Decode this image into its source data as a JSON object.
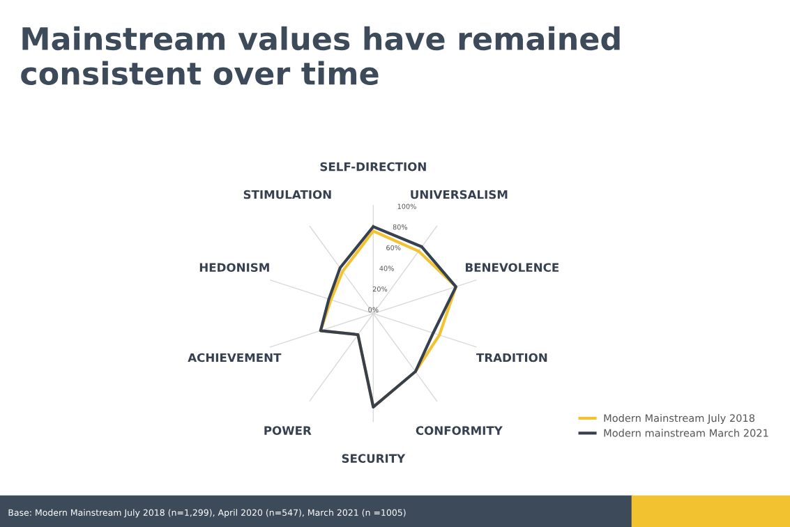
{
  "chart_data": {
    "type": "radar",
    "title": "Mainstream values have remained\nconsistent over time",
    "categories": [
      "SELF-DIRECTION",
      "UNIVERSALISM",
      "BENEVOLENCE",
      "TRADITION",
      "CONFORMITY",
      "SECURITY",
      "POWER",
      "ACHIEVEMENT",
      "HEDONISM",
      "STIMULATION"
    ],
    "series": [
      {
        "name": "Modern Mainstream July 2018",
        "color": "#f2c230",
        "values": [
          76,
          71,
          80,
          64,
          66,
          86,
          24,
          51,
          41,
          48
        ]
      },
      {
        "name": "Modern mainstream March 2021",
        "color": "#36404f",
        "values": [
          80,
          76,
          80,
          58,
          66,
          86,
          24,
          51,
          43,
          52
        ]
      }
    ],
    "ylim": [
      0,
      100
    ],
    "yticks": [
      {
        "value": 0,
        "label": "0%"
      },
      {
        "value": 20,
        "label": "20%"
      },
      {
        "value": 40,
        "label": "40%"
      },
      {
        "value": 60,
        "label": "60%"
      },
      {
        "value": 80,
        "label": "80%"
      },
      {
        "value": 100,
        "label": "100%"
      }
    ],
    "grid": "x",
    "legend": "bottom right",
    "marker": "none",
    "line_style": "solid",
    "annotations": [
      "Base: Modern Mainstream July 2018 (n=1,299), April 2020 (n=547), March 2021 (n =1005)"
    ]
  }
}
